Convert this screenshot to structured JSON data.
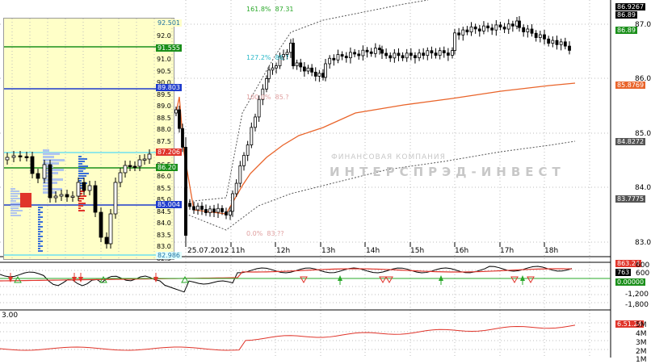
{
  "main_chart": {
    "price_axis": [
      "87.0",
      "86.0",
      "85.0",
      "84.0",
      "83.0"
    ],
    "price_labels": {
      "top_hi": "86.9267",
      "last_a": "86.89",
      "last_b": "86.89",
      "orange_ma": "85.8769",
      "upper_band": "84.8272",
      "lower_band": "83.7775"
    },
    "time_axis": [
      "25.07.2012",
      "11h",
      "12h",
      "13h",
      "14h",
      "15h",
      "16h",
      "17h",
      "18h"
    ],
    "fib_labels": {
      "f1": "161.8%",
      "f1v": "87.31",
      "f2": "127.2%",
      "f2v": "86.?",
      "f3": "100.0%",
      "f3v": "85.?",
      "f4": "0.0%",
      "f4v": "83.??"
    },
    "watermark": {
      "line1": "ФИНАНСОВАЯ КОМПАНИЯ",
      "line2": "ИНТЕРСПРЭД-ИНВЕСТ"
    }
  },
  "inset_chart": {
    "price_axis": [
      "92.0",
      "91.5",
      "91.0",
      "90.5",
      "90.0",
      "89.5",
      "89.0",
      "88.5",
      "88.0",
      "87.5",
      "87.0",
      "86.5",
      "86.0",
      "85.5",
      "85.0",
      "84.5",
      "84.0",
      "83.5",
      "83.0",
      "82.5"
    ],
    "level_labels": {
      "top": "92.501",
      "green_top": "91.555",
      "blue_top": "89.803",
      "red": "87.206",
      "green_mid": "86.20",
      "blue_low": "85.004",
      "bottom": "82.986"
    }
  },
  "oscillator": {
    "axis": [
      "600",
      "0",
      "-600",
      "-1,200",
      "-1,800"
    ],
    "labels": {
      "red_val": "863.24",
      "black_val": "763",
      "green_val": "0.00000"
    }
  },
  "volume_panel": {
    "left_label": "3.00",
    "axis": [
      "5M",
      "4M",
      "3M",
      "2M",
      "1M"
    ],
    "labels": {
      "red_val": "6.51.24"
    }
  },
  "colors": {
    "up_bar": "#ffffff",
    "down_bar": "#000000",
    "ma": "#e9642a",
    "band": "#555555",
    "osc_red": "#e0352b",
    "inset_bg": "#ffffc8",
    "grid": "#bfbfbf",
    "green_level": "#1a8f1a",
    "blue_level": "#1f3ccc",
    "cyan_level": "#6fe0f0"
  }
}
